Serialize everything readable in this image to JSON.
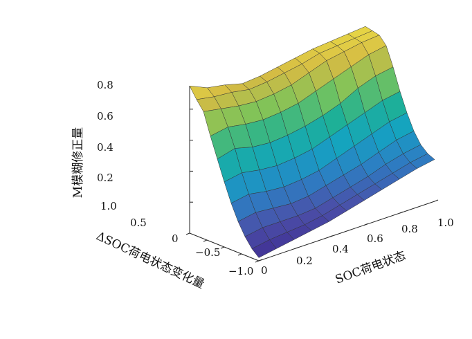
{
  "chart_data": {
    "type": "surface3d",
    "title": "",
    "xlabel": "SOC荷电状态",
    "ylabel": "ΔSOC荷电状态变化量",
    "zlabel": "M模糊修正量",
    "xlim": [
      0,
      1
    ],
    "ylim": [
      -1,
      1
    ],
    "zlim": [
      0,
      1
    ],
    "x_ticks": [
      "0",
      "0.2",
      "0.4",
      "0.6",
      "0.8",
      "1.0"
    ],
    "y_ticks": [
      "1.0",
      "0.5",
      "0",
      "−0.5",
      "−1.0"
    ],
    "z_ticks": [
      "0.2",
      "0.4",
      "0.6",
      "0.8"
    ],
    "x": [
      0,
      0.1,
      0.2,
      0.3,
      0.4,
      0.5,
      0.6,
      0.7,
      0.8,
      0.9,
      1.0
    ],
    "y": [
      1.0,
      0.8,
      0.6,
      0.4,
      0.2,
      0,
      -0.2,
      -0.4,
      -0.6,
      -0.8,
      -1.0
    ],
    "z": [
      [
        0.95,
        0.9,
        0.88,
        0.85,
        0.86,
        0.88,
        0.9,
        0.92,
        0.93,
        0.94,
        0.95
      ],
      [
        0.88,
        0.86,
        0.85,
        0.83,
        0.84,
        0.86,
        0.88,
        0.91,
        0.92,
        0.93,
        0.94
      ],
      [
        0.82,
        0.8,
        0.78,
        0.77,
        0.78,
        0.8,
        0.84,
        0.88,
        0.9,
        0.92,
        0.93
      ],
      [
        0.68,
        0.7,
        0.68,
        0.67,
        0.68,
        0.7,
        0.74,
        0.78,
        0.82,
        0.86,
        0.88
      ],
      [
        0.55,
        0.58,
        0.55,
        0.54,
        0.55,
        0.57,
        0.6,
        0.64,
        0.7,
        0.74,
        0.76
      ],
      [
        0.42,
        0.44,
        0.42,
        0.41,
        0.42,
        0.44,
        0.48,
        0.52,
        0.56,
        0.6,
        0.62
      ],
      [
        0.3,
        0.32,
        0.3,
        0.29,
        0.3,
        0.32,
        0.36,
        0.4,
        0.44,
        0.48,
        0.5
      ],
      [
        0.2,
        0.22,
        0.21,
        0.2,
        0.21,
        0.24,
        0.27,
        0.3,
        0.34,
        0.38,
        0.4
      ],
      [
        0.12,
        0.14,
        0.14,
        0.14,
        0.15,
        0.18,
        0.21,
        0.24,
        0.28,
        0.31,
        0.33
      ],
      [
        0.06,
        0.08,
        0.09,
        0.1,
        0.12,
        0.15,
        0.18,
        0.21,
        0.24,
        0.27,
        0.29
      ],
      [
        0.02,
        0.04,
        0.06,
        0.08,
        0.1,
        0.13,
        0.16,
        0.19,
        0.22,
        0.25,
        0.27
      ]
    ],
    "colormap": [
      "#3e2a8f",
      "#4b4fa8",
      "#2c7fc3",
      "#14a3c2",
      "#1fb193",
      "#7bc45a",
      "#d4bb44",
      "#f2e446"
    ]
  }
}
